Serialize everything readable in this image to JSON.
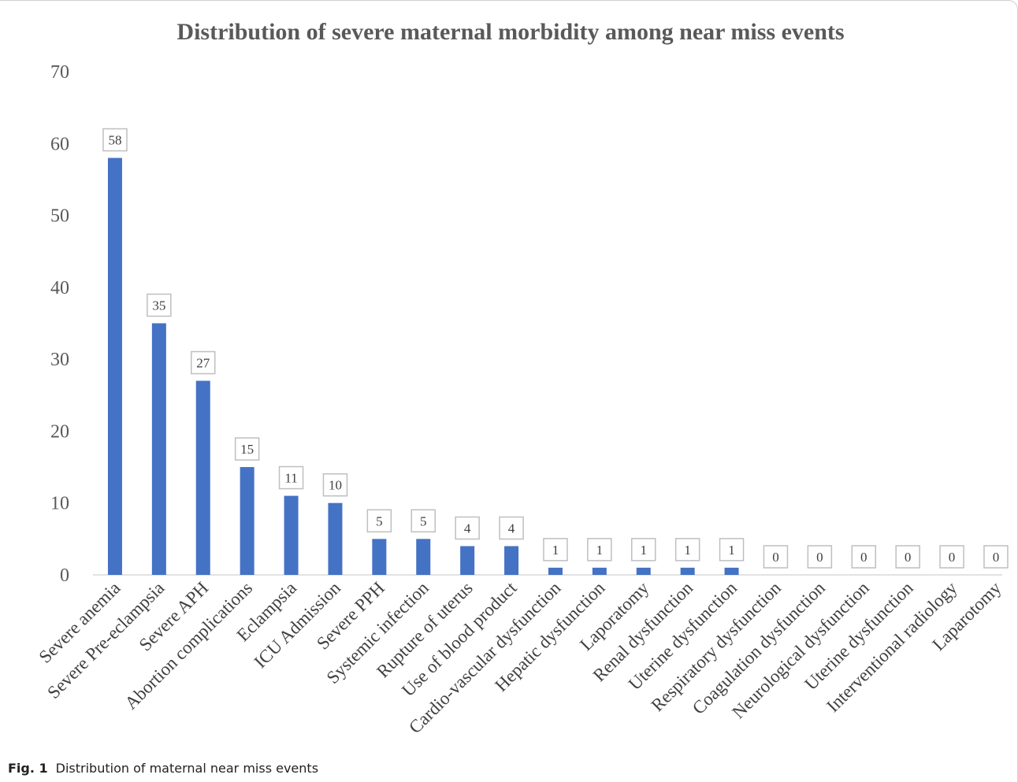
{
  "chart_data": {
    "type": "bar",
    "title": "Distribution of severe maternal morbidity among near miss events",
    "xlabel": "",
    "ylabel": "",
    "ylim": [
      0,
      70
    ],
    "yticks": [
      0,
      10,
      20,
      30,
      40,
      50,
      60,
      70
    ],
    "grid": false,
    "legend": "none",
    "categories": [
      "Severe anemia",
      "Severe Pre-eclampsia",
      "Severe APH",
      "Abortion complications",
      "Eclampsia",
      "ICU Admission",
      "Severe PPH",
      "Systemic infection",
      "Rupture of uterus",
      "Use of blood product",
      "Cardio-vascular dysfunction",
      "Hepatic dysfunction",
      "Laporatomy",
      "Renal dysfunction",
      "Uterine dysfunction",
      "Respiratory dysfunction",
      "Coagulation dysfunction",
      "Neurological dysfunction",
      "Uterine dysfunction",
      "Interventional radiology",
      "Laparotomy"
    ],
    "values": [
      58,
      35,
      27,
      15,
      11,
      10,
      5,
      5,
      4,
      4,
      1,
      1,
      1,
      1,
      1,
      0,
      0,
      0,
      0,
      0,
      0
    ],
    "bar_color": "#4472c4",
    "label_border_color": "#bfbfbf"
  },
  "caption": {
    "label": "Fig. 1",
    "text": "Distribution of maternal near miss events"
  }
}
